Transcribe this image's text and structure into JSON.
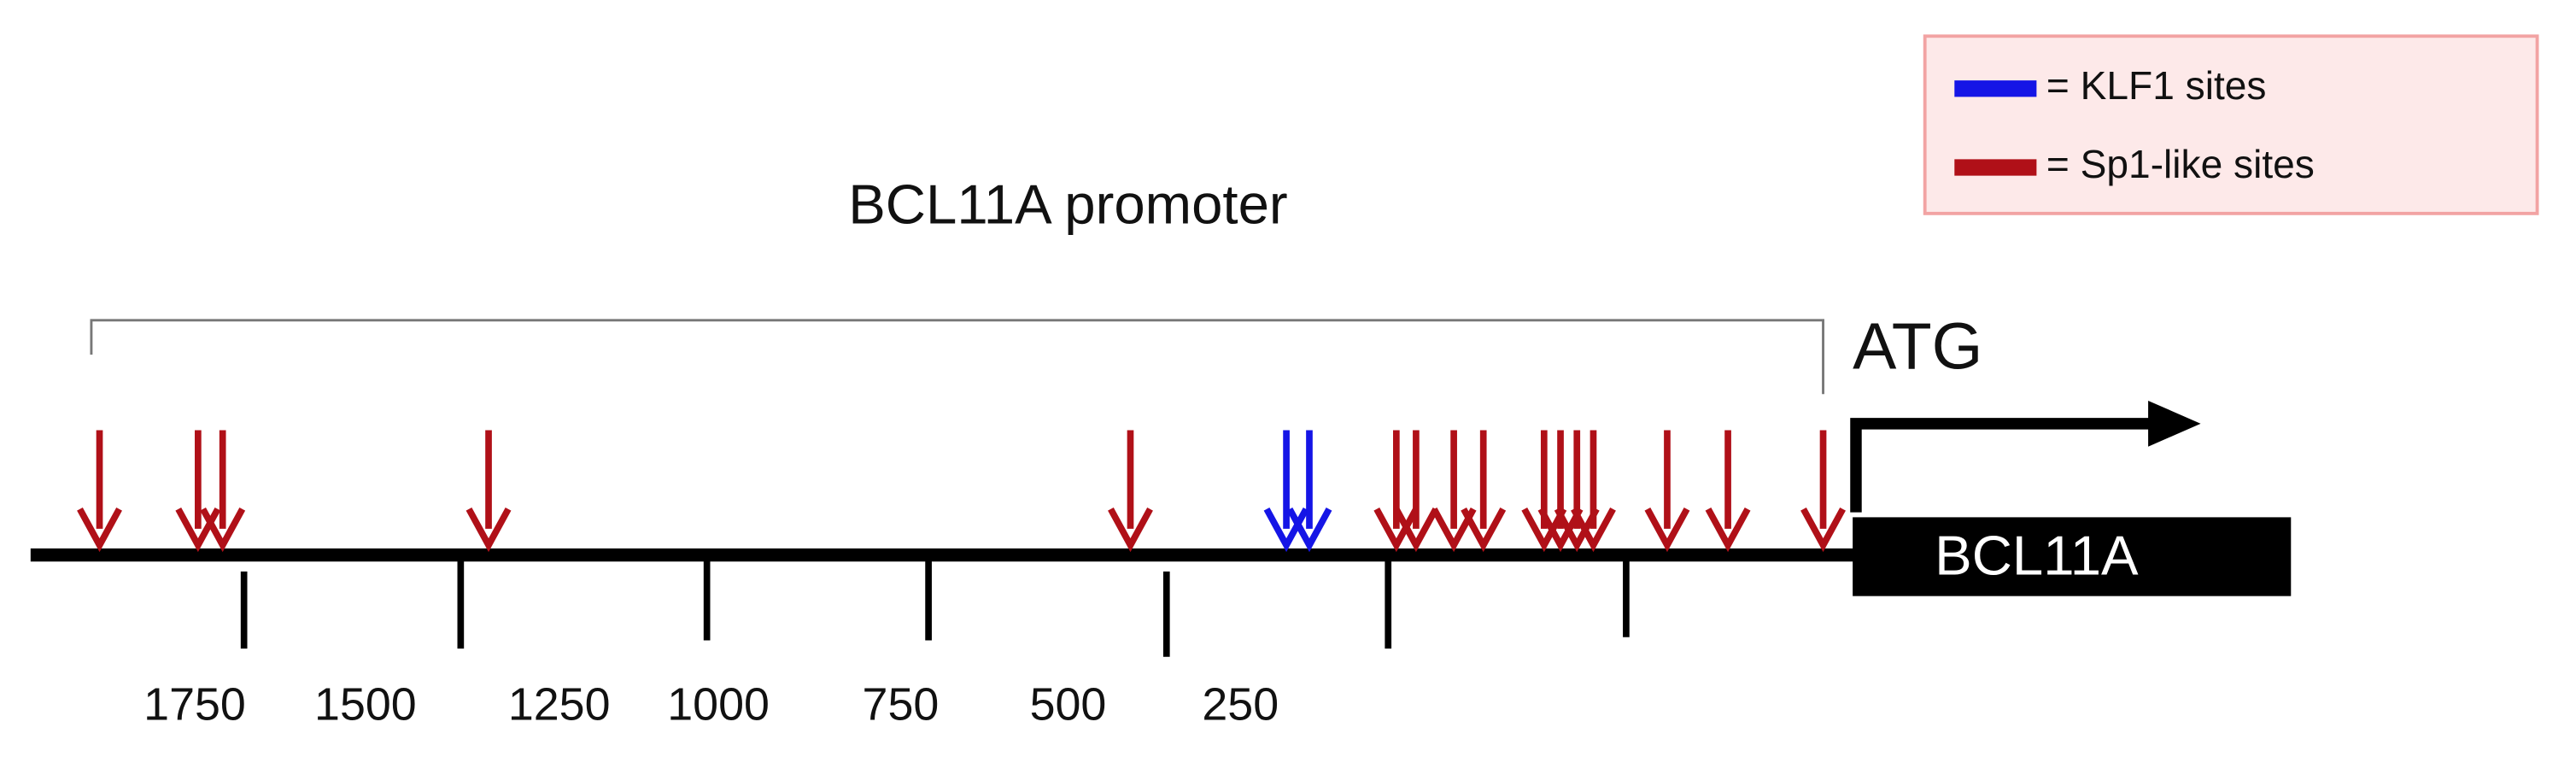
{
  "title": "BCL11A promoter",
  "start_label": "ATG",
  "gene_label": "BCL11A",
  "legend": [
    "= KLF1 sites",
    "= Sp1-like sites"
  ],
  "scale_labels": [
    "1750",
    "1500",
    "1250",
    "1000",
    "750",
    "500",
    "250"
  ]
}
